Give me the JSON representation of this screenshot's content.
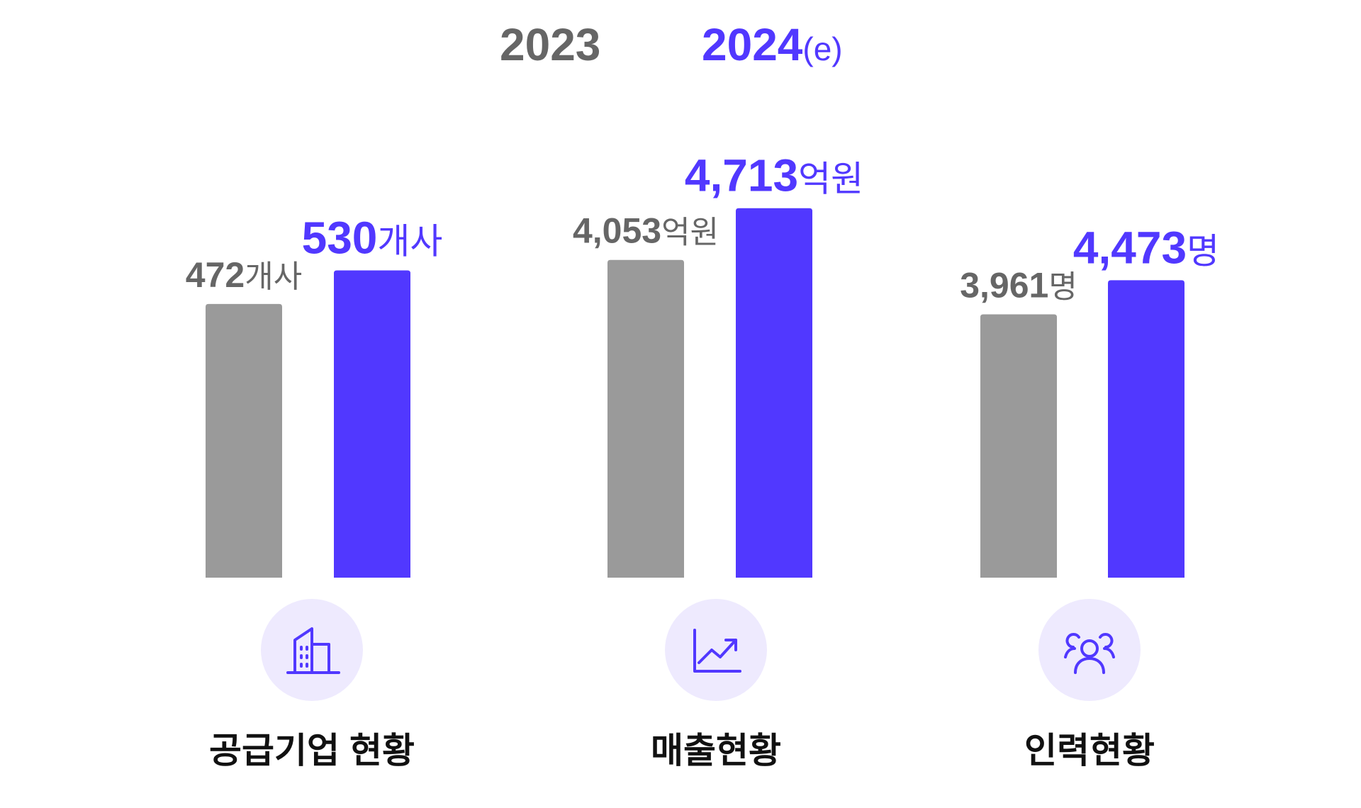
{
  "legend": [
    {
      "name": "2023",
      "suffix": "",
      "color": "#9a9a9a",
      "text_color": "#666666"
    },
    {
      "name": "2024",
      "suffix": "(e)",
      "color": "#5138ff",
      "text_color": "#5138ff"
    }
  ],
  "chart_data": {
    "type": "bar",
    "categories": [
      "공급기업 현황",
      "매출현황",
      "인력현황"
    ],
    "series": [
      {
        "name": "2023",
        "color": "#9a9a9a"
      },
      {
        "name": "2024(e)",
        "color": "#5138ff"
      }
    ],
    "groups": [
      {
        "category": "공급기업 현황",
        "icon": "building-icon",
        "unit": "개사",
        "values": [
          472,
          530
        ],
        "labels": [
          "472",
          "530"
        ]
      },
      {
        "category": "매출현황",
        "icon": "trending-up-chart-icon",
        "unit": "억원",
        "values": [
          4053,
          4713
        ],
        "labels": [
          "4,053",
          "4,713"
        ]
      },
      {
        "category": "인력현황",
        "icon": "people-icon",
        "unit": "명",
        "values": [
          3961,
          4473
        ],
        "labels": [
          "3,961",
          "4,473"
        ]
      }
    ],
    "grid": false,
    "legend_position": "top-center"
  },
  "groups": [
    {
      "label": "공급기업 현황",
      "icon": "building-icon"
    },
    {
      "label": "매출현황",
      "icon": "trending-up-chart-icon"
    },
    {
      "label": "인력현황",
      "icon": "people-icon"
    }
  ]
}
